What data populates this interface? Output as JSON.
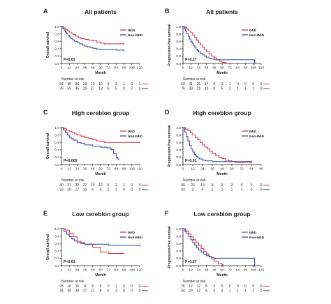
{
  "colors": {
    "imid": "#d42a3a",
    "non_imid": "#2f3f9e",
    "axis": "#1a1a1a"
  },
  "risk_label": "Number at risk",
  "chart_data": [
    {
      "panel": "A",
      "type": "line",
      "title": "All patients",
      "ylabel": "Overall survival",
      "xlabel": "Month",
      "xticks": [
        0,
        12,
        24,
        36,
        48,
        60,
        72,
        84,
        96,
        108,
        120
      ],
      "xlim": [
        0,
        120
      ],
      "yticks": [
        0.0,
        0.2,
        0.4,
        0.6,
        0.8,
        1.0
      ],
      "ytick_labels": [
        "0.0",
        "0.2",
        "0.4",
        "0.6",
        "0.8",
        "1.0"
      ],
      "ylim": [
        0,
        1
      ],
      "pvalue": "P=0.03",
      "legend": [
        "IMiD",
        "Non-IMiD"
      ],
      "series": [
        {
          "name": "IMiD",
          "color_key": "imid",
          "x": [
            0,
            3,
            6,
            9,
            12,
            15,
            18,
            22,
            26,
            30,
            36,
            42,
            48,
            54,
            60,
            66,
            96
          ],
          "y": [
            1.0,
            0.96,
            0.92,
            0.88,
            0.85,
            0.82,
            0.78,
            0.74,
            0.7,
            0.67,
            0.65,
            0.63,
            0.62,
            0.58,
            0.55,
            0.53,
            0.53
          ]
        },
        {
          "name": "Non-IMiD",
          "color_key": "non_imid",
          "x": [
            0,
            2,
            4,
            6,
            8,
            10,
            12,
            14,
            17,
            20,
            24,
            28,
            32,
            36,
            40,
            44,
            48,
            54,
            60,
            72,
            80,
            84,
            90,
            96
          ],
          "y": [
            1.0,
            0.95,
            0.9,
            0.85,
            0.8,
            0.76,
            0.72,
            0.68,
            0.64,
            0.6,
            0.57,
            0.53,
            0.5,
            0.47,
            0.45,
            0.43,
            0.41,
            0.39,
            0.38,
            0.38,
            0.38,
            0.36,
            0.36,
            0.36
          ]
        }
      ],
      "risk": {
        "rows": [
          {
            "values": [
              "54",
              "45",
              "36",
              "29",
              "19",
              "16",
              "5",
              "3",
              "1",
              "0",
              "1"
            ]
          },
          {
            "values": [
              "76",
              "59",
              "45",
              "29",
              "17",
              "13",
              "6",
              "5",
              "0",
              "0",
              "0"
            ]
          }
        ]
      }
    },
    {
      "panel": "B",
      "type": "line",
      "title": "All patients",
      "ylabel": "Progression-free survival",
      "xlabel": "Month",
      "xticks": [
        0,
        12,
        24,
        36,
        48,
        60,
        72,
        84,
        96,
        108,
        120
      ],
      "xlim": [
        0,
        120
      ],
      "yticks": [
        0.0,
        0.2,
        0.4,
        0.6,
        0.8,
        1.0
      ],
      "ytick_labels": [
        "0.0",
        "0.2",
        "0.4",
        "0.6",
        "0.8",
        "1.0"
      ],
      "ylim": [
        0,
        1
      ],
      "pvalue": "P=0.17",
      "legend": [
        "IMiD",
        "Non-IMiD"
      ],
      "series": [
        {
          "name": "IMiD",
          "color_key": "imid",
          "x": [
            0,
            3,
            6,
            9,
            12,
            15,
            18,
            21,
            24,
            27,
            30,
            33,
            36,
            40,
            44,
            48,
            52,
            56,
            60,
            66
          ],
          "y": [
            1.0,
            0.97,
            0.93,
            0.88,
            0.83,
            0.77,
            0.7,
            0.63,
            0.56,
            0.5,
            0.44,
            0.38,
            0.32,
            0.26,
            0.2,
            0.15,
            0.1,
            0.06,
            0.03,
            0.0
          ]
        },
        {
          "name": "Non-IMiD",
          "color_key": "non_imid",
          "x": [
            0,
            2,
            4,
            6,
            8,
            10,
            12,
            14,
            16,
            18,
            20,
            22,
            24,
            27,
            30,
            33,
            36,
            40,
            44,
            48,
            108,
            110
          ],
          "y": [
            1.0,
            0.94,
            0.87,
            0.8,
            0.73,
            0.66,
            0.6,
            0.54,
            0.49,
            0.44,
            0.39,
            0.35,
            0.31,
            0.27,
            0.23,
            0.2,
            0.17,
            0.14,
            0.12,
            0.1,
            0.1,
            0.0
          ]
        }
      ],
      "risk": {
        "rows": [
          {
            "values": [
              "54",
              "41",
              "25",
              "17",
              "9",
              "3",
              "1",
              "0",
              "0",
              "0",
              "0"
            ]
          },
          {
            "values": [
              "76",
              "39",
              "21",
              "13",
              "9",
              "5",
              "2",
              "1",
              "1",
              "1",
              "0"
            ]
          }
        ]
      }
    },
    {
      "panel": "C",
      "type": "line",
      "title": "High cereblon group",
      "ylabel": "Overall survival",
      "xlabel": "Month",
      "xticks": [
        0,
        12,
        24,
        36,
        48,
        60,
        72,
        84,
        96,
        108,
        120
      ],
      "xlim": [
        0,
        120
      ],
      "yticks": [
        0.0,
        0.2,
        0.4,
        0.6,
        0.8,
        1.0
      ],
      "ytick_labels": [
        "0.0",
        "0.2",
        "0.4",
        "0.6",
        "0.8",
        "1.0"
      ],
      "ylim": [
        0,
        1
      ],
      "pvalue": "P=0.005",
      "legend": [
        "IMiD",
        "Non-IMiD"
      ],
      "series": [
        {
          "name": "IMiD",
          "color_key": "imid",
          "x": [
            0,
            4,
            8,
            12,
            16,
            20,
            24,
            30,
            36,
            42,
            48,
            54,
            60,
            66,
            72,
            84,
            96,
            108,
            120
          ],
          "y": [
            1.0,
            0.97,
            0.93,
            0.9,
            0.87,
            0.83,
            0.8,
            0.77,
            0.73,
            0.7,
            0.67,
            0.64,
            0.62,
            0.6,
            0.6,
            0.6,
            0.6,
            0.6,
            0.6
          ]
        },
        {
          "name": "Non-IMiD",
          "color_key": "non_imid",
          "x": [
            0,
            3,
            6,
            9,
            12,
            15,
            18,
            24,
            30,
            36,
            48,
            60,
            70,
            76,
            80,
            84,
            86,
            88
          ],
          "y": [
            1.0,
            0.93,
            0.86,
            0.8,
            0.74,
            0.7,
            0.66,
            0.6,
            0.57,
            0.53,
            0.5,
            0.47,
            0.45,
            0.4,
            0.3,
            0.2,
            0.15,
            0.15
          ]
        }
      ],
      "risk": {
        "rows": [
          {
            "values": [
              "30",
              "27",
              "22",
              "22",
              "13",
              "12",
              "5",
              "2",
              "1",
              "0",
              "0"
            ]
          },
          {
            "values": [
              "33",
              "20",
              "17",
              "10",
              "6",
              "5",
              "2",
              "1",
              "0",
              "0",
              "0"
            ]
          }
        ]
      }
    },
    {
      "panel": "D",
      "type": "line",
      "title": "High cereblon group",
      "ylabel": "Progression-free survival",
      "xlabel": "Month",
      "xticks": [
        0,
        12,
        24,
        36,
        48,
        60,
        72,
        84,
        96
      ],
      "xlim": [
        0,
        96
      ],
      "yticks": [
        0.0,
        0.2,
        0.4,
        0.6,
        0.8,
        1.0
      ],
      "ytick_labels": [
        "0.0",
        "0.2",
        "0.4",
        "0.6",
        "0.8",
        "1.0"
      ],
      "ylim": [
        0,
        1
      ],
      "pvalue": "P=0.01",
      "legend": [
        "IMiD",
        "Non-IMiD"
      ],
      "series": [
        {
          "name": "IMiD",
          "color_key": "imid",
          "x": [
            0,
            3,
            6,
            9,
            12,
            15,
            18,
            21,
            24,
            27,
            30,
            33,
            36,
            40,
            44,
            48,
            52,
            56,
            60,
            64,
            84
          ],
          "y": [
            1.0,
            0.96,
            0.92,
            0.86,
            0.8,
            0.73,
            0.67,
            0.6,
            0.53,
            0.47,
            0.42,
            0.36,
            0.3,
            0.25,
            0.2,
            0.16,
            0.12,
            0.1,
            0.08,
            0.06,
            0.06
          ]
        },
        {
          "name": "Non-IMiD",
          "color_key": "non_imid",
          "x": [
            0,
            2,
            4,
            6,
            8,
            10,
            12,
            14,
            16,
            18,
            20,
            24,
            28,
            36,
            48,
            60,
            72,
            84
          ],
          "y": [
            1.0,
            0.88,
            0.76,
            0.64,
            0.52,
            0.42,
            0.34,
            0.27,
            0.22,
            0.18,
            0.15,
            0.12,
            0.1,
            0.08,
            0.08,
            0.08,
            0.08,
            0.08
          ]
        }
      ],
      "risk": {
        "rows": [
          {
            "values": [
              "30",
              "23",
              "13",
              "9",
              "3",
              "3",
              "0",
              "0",
              "0"
            ]
          },
          {
            "values": [
              "33",
              "3",
              "4",
              "1",
              "1",
              "1",
              "1",
              "0",
              "0"
            ]
          }
        ]
      }
    },
    {
      "panel": "E",
      "type": "line",
      "title": "Low cereblon group",
      "ylabel": "Overall survival",
      "xlabel": "Month",
      "xticks": [
        0,
        12,
        24,
        36,
        48,
        60,
        72,
        84,
        96,
        108,
        120
      ],
      "xlim": [
        0,
        120
      ],
      "yticks": [
        0.0,
        0.2,
        0.4,
        0.6,
        0.8,
        1.0
      ],
      "ytick_labels": [
        "0.0",
        "0.2",
        "0.4",
        "0.6",
        "0.8",
        "1.0"
      ],
      "ylim": [
        0,
        1
      ],
      "pvalue": "P=0.61",
      "legend": [
        "IMiD",
        "Non-IMiD"
      ],
      "series": [
        {
          "name": "IMiD",
          "color_key": "imid",
          "x": [
            0,
            6,
            12,
            18,
            24,
            30,
            36,
            48,
            60,
            72,
            84,
            96
          ],
          "y": [
            1.0,
            0.96,
            0.88,
            0.78,
            0.66,
            0.62,
            0.58,
            0.5,
            0.37,
            0.33,
            0.33,
            0.33
          ]
        },
        {
          "name": "Non-IMiD",
          "color_key": "non_imid",
          "x": [
            0,
            4,
            8,
            12,
            16,
            20,
            24,
            30,
            36,
            48,
            60,
            72,
            84,
            96,
            108,
            120
          ],
          "y": [
            1.0,
            0.92,
            0.85,
            0.78,
            0.72,
            0.67,
            0.62,
            0.6,
            0.58,
            0.58,
            0.58,
            0.55,
            0.55,
            0.55,
            0.55,
            0.55
          ]
        }
      ],
      "risk": {
        "rows": [
          {
            "values": [
              "25",
              "16",
              "15",
              "8",
              "5",
              "3",
              "0",
              "1",
              "0",
              "0",
              "0"
            ]
          },
          {
            "values": [
              "44",
              "39",
              "29",
              "17",
              "11",
              "8",
              "5",
              "3",
              "0",
              "0",
              "0"
            ]
          }
        ]
      }
    },
    {
      "panel": "F",
      "type": "line",
      "title": "Low cereblon group",
      "ylabel": "Progression-free survival",
      "xlabel": "Month",
      "xticks": [
        0,
        12,
        24,
        36,
        48,
        60,
        72,
        84,
        96,
        108,
        120
      ],
      "xlim": [
        0,
        120
      ],
      "yticks": [
        0.0,
        0.2,
        0.4,
        0.6,
        0.8,
        1.0
      ],
      "ytick_labels": [
        "0.0",
        "0.2",
        "0.4",
        "0.6",
        "0.8",
        "1.0"
      ],
      "ylim": [
        0,
        1
      ],
      "pvalue": "P=0.67",
      "legend": [
        "IMiD",
        "Non-IMiD"
      ],
      "series": [
        {
          "name": "IMiD",
          "color_key": "imid",
          "x": [
            0,
            4,
            8,
            12,
            16,
            20,
            24,
            28,
            32,
            36,
            40,
            44,
            48,
            54,
            60,
            62
          ],
          "y": [
            1.0,
            0.94,
            0.86,
            0.78,
            0.7,
            0.62,
            0.54,
            0.46,
            0.38,
            0.32,
            0.25,
            0.18,
            0.12,
            0.06,
            0.02,
            0.0
          ]
        },
        {
          "name": "Non-IMiD",
          "color_key": "non_imid",
          "x": [
            0,
            3,
            6,
            9,
            12,
            15,
            18,
            21,
            24,
            28,
            32,
            36,
            40,
            44,
            48,
            60,
            72,
            84,
            96,
            108,
            110
          ],
          "y": [
            1.0,
            0.93,
            0.86,
            0.78,
            0.7,
            0.62,
            0.55,
            0.48,
            0.42,
            0.36,
            0.31,
            0.27,
            0.24,
            0.22,
            0.2,
            0.2,
            0.2,
            0.2,
            0.2,
            0.2,
            0.0
          ]
        }
      ],
      "risk": {
        "rows": [
          {
            "values": [
              "25",
              "17",
              "12",
              "5",
              "2",
              "0",
              "0",
              "0",
              "0",
              "0",
              "0"
            ]
          },
          {
            "values": [
              "44",
              "23",
              "12",
              "6",
              "3",
              "3",
              "1",
              "1",
              "1",
              "1",
              "0"
            ]
          }
        ]
      }
    }
  ]
}
